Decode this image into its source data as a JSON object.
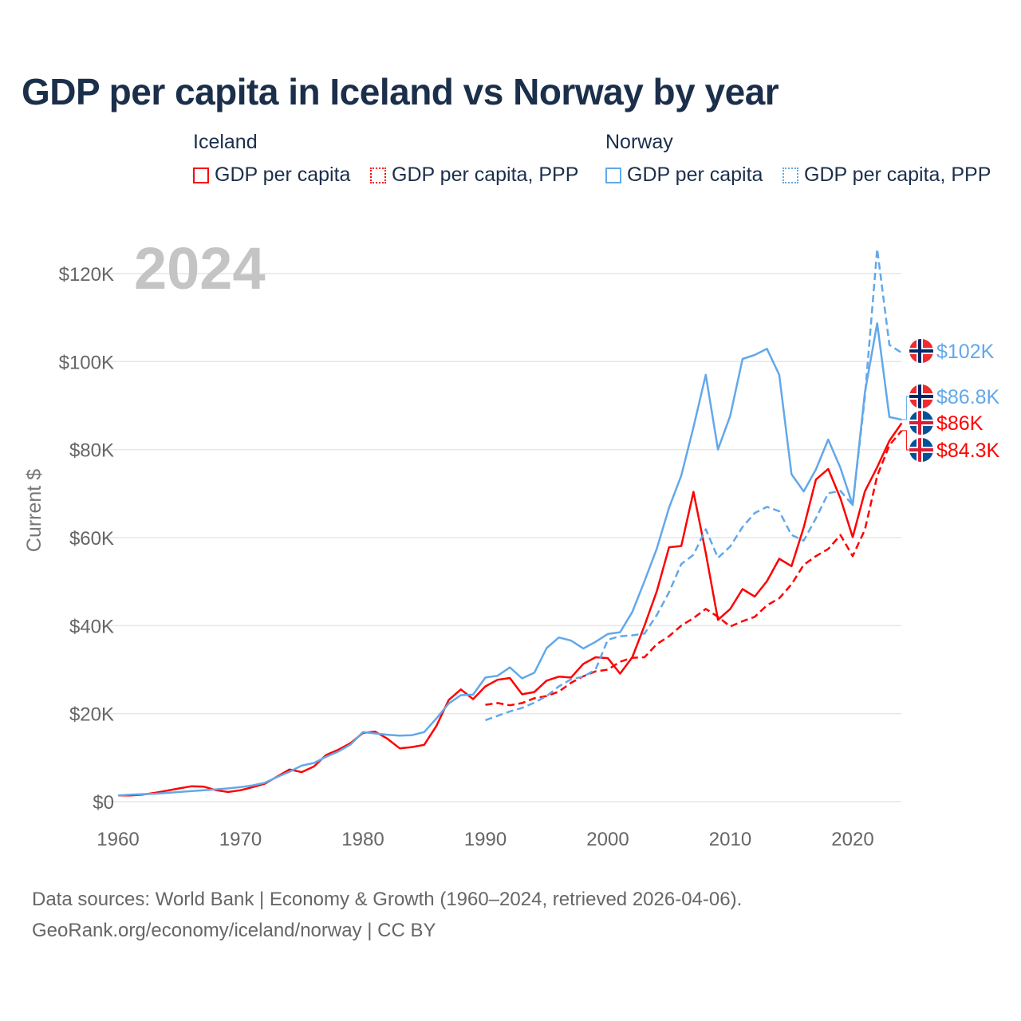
{
  "chart_data": {
    "type": "line",
    "title": "GDP per capita in Iceland vs Norway by year",
    "year_overlay": "2024",
    "ylabel": "Current $",
    "xlabel": "",
    "xlim": [
      1960,
      2024
    ],
    "ylim": [
      0,
      125000
    ],
    "grid": true,
    "x_ticks": [
      "1960",
      "1970",
      "1980",
      "1990",
      "2000",
      "2010",
      "2020"
    ],
    "x_tick_values": [
      1960,
      1970,
      1980,
      1990,
      2000,
      2010,
      2020
    ],
    "y_ticks": [
      "$0",
      "$20K",
      "$40K",
      "$60K",
      "$80K",
      "$100K",
      "$120K"
    ],
    "y_tick_values": [
      0,
      20,
      40,
      60,
      80,
      100,
      120
    ],
    "units": "thousand current US$",
    "legend": {
      "groups": [
        {
          "name": "Iceland",
          "items": [
            "GDP per capita",
            "GDP per capita, PPP"
          ]
        },
        {
          "name": "Norway",
          "items": [
            "GDP per capita",
            "GDP per capita, PPP"
          ]
        }
      ],
      "placement": "top"
    },
    "series": [
      {
        "name": "Iceland GDP per capita",
        "country": "Iceland",
        "color": "#ff0000",
        "dash": false,
        "start_year": 1960,
        "end_label": "$86K",
        "values": [
          1.4,
          1.4,
          1.6,
          2.0,
          2.5,
          3.0,
          3.5,
          3.4,
          2.6,
          2.2,
          2.6,
          3.3,
          4.1,
          5.7,
          7.3,
          6.7,
          8.0,
          10.6,
          11.8,
          13.3,
          15.6,
          15.9,
          14.3,
          12.1,
          12.4,
          12.9,
          17.2,
          23.1,
          25.5,
          23.3,
          26.2,
          27.7,
          28.1,
          24.4,
          24.9,
          27.5,
          28.4,
          28.2,
          31.3,
          32.8,
          32.6,
          29.1,
          32.8,
          40.0,
          47.8,
          57.8,
          58.1,
          70.4,
          56.5,
          41.3,
          43.8,
          48.3,
          46.6,
          50.1,
          55.2,
          53.5,
          62.3,
          73.2,
          75.6,
          68.9,
          60.1,
          70.5,
          76.0,
          82.0,
          86.0
        ]
      },
      {
        "name": "Iceland GDP per capita, PPP",
        "country": "Iceland",
        "color": "#ff0000",
        "dash": true,
        "start_year": 1990,
        "end_label": "$84.3K",
        "values": [
          22.0,
          22.4,
          21.9,
          22.4,
          23.5,
          24.0,
          25.0,
          27.0,
          28.5,
          29.6,
          30.0,
          31.8,
          32.7,
          32.8,
          35.8,
          37.6,
          40.0,
          41.7,
          43.8,
          42.0,
          39.8,
          41.0,
          42.0,
          44.6,
          46.2,
          49.4,
          53.8,
          55.8,
          57.4,
          60.6,
          55.8,
          61.8,
          74.0,
          81.0,
          84.3
        ]
      },
      {
        "name": "Norway GDP per capita",
        "country": "Norway",
        "color": "#62a8ea",
        "dash": false,
        "start_year": 1960,
        "end_label": "$86.8K",
        "values": [
          1.4,
          1.6,
          1.7,
          1.8,
          2.0,
          2.2,
          2.4,
          2.6,
          2.8,
          3.0,
          3.3,
          3.7,
          4.3,
          5.6,
          6.8,
          8.2,
          8.8,
          10.2,
          11.4,
          13.0,
          15.8,
          15.5,
          15.2,
          15.0,
          15.1,
          15.8,
          18.9,
          22.3,
          24.2,
          24.3,
          28.2,
          28.6,
          30.5,
          28.0,
          29.3,
          34.9,
          37.3,
          36.6,
          34.8,
          36.3,
          38.1,
          38.5,
          43.1,
          50.1,
          57.5,
          66.8,
          74.1,
          85.1,
          97.0,
          80.0,
          87.7,
          100.6,
          101.5,
          102.9,
          97.0,
          74.4,
          70.5,
          75.5,
          82.3,
          75.8,
          67.4,
          93.0,
          108.7,
          87.4,
          86.8
        ]
      },
      {
        "name": "Norway GDP per capita, PPP",
        "country": "Norway",
        "color": "#62a8ea",
        "dash": true,
        "start_year": 1990,
        "end_label": "$102K",
        "values": [
          18.5,
          19.5,
          20.5,
          21.3,
          22.5,
          24.0,
          26.2,
          27.8,
          28.4,
          30.0,
          36.8,
          37.6,
          37.8,
          38.2,
          42.4,
          47.6,
          54.0,
          56.1,
          61.9,
          55.4,
          58.0,
          62.4,
          65.6,
          67.0,
          66.0,
          60.6,
          59.3,
          64.4,
          70.1,
          70.6,
          67.4,
          92.0,
          125.6,
          103.8,
          102.0
        ]
      }
    ]
  },
  "footer": {
    "line1": "Data sources: World Bank | Economy & Growth (1960–2024, retrieved 2026-04-06).",
    "line2": "GeoRank.org/economy/iceland/norway | CC BY"
  }
}
